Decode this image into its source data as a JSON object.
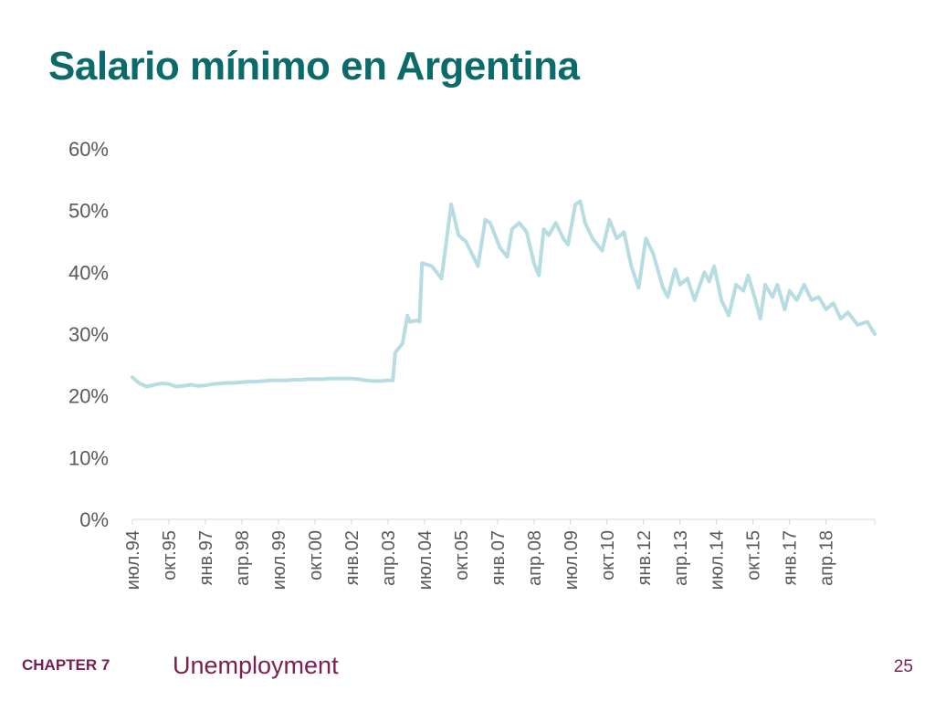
{
  "slide": {
    "title": "Salario mínimo en Argentina",
    "footer_chapter": "CHAPTER 7",
    "footer_subject": "Unemployment",
    "page_number": "25"
  },
  "colors": {
    "title": "#0b6a6a",
    "series_line": "#b7dde3",
    "axis_text": "#595959",
    "axis_line": "#d9d9d9",
    "footer": "#7a1f4f"
  },
  "chart_data": {
    "type": "line",
    "title": "",
    "xlabel": "",
    "ylabel": "",
    "ylim": [
      0,
      0.6
    ],
    "y_ticks": [
      "0%",
      "10%",
      "20%",
      "30%",
      "40%",
      "50%",
      "60%"
    ],
    "y_tick_values": [
      0,
      0.1,
      0.2,
      0.3,
      0.4,
      0.5,
      0.6
    ],
    "grid": false,
    "legend": "none",
    "x_tick_labels": [
      "июл.94",
      "окт.95",
      "янв.97",
      "апр.98",
      "июл.99",
      "окт.00",
      "янв.02",
      "апр.03",
      "июл.04",
      "окт.05",
      "янв.07",
      "апр.08",
      "июл.09",
      "окт.10",
      "янв.12",
      "апр.13",
      "июл.14",
      "окт.15",
      "янв.17",
      "апр.18"
    ],
    "x_range": [
      "июл.94",
      "дек.19"
    ],
    "series": [
      {
        "points": [
          [
            "июл.94",
            0.23
          ],
          [
            "окт.94",
            0.22
          ],
          [
            "янв.95",
            0.215
          ],
          [
            "апр.95",
            0.218
          ],
          [
            "июл.95",
            0.22
          ],
          [
            "окт.95",
            0.219
          ],
          [
            "янв.96",
            0.215
          ],
          [
            "апр.96",
            0.216
          ],
          [
            "июл.96",
            0.218
          ],
          [
            "окт.96",
            0.216
          ],
          [
            "янв.97",
            0.217
          ],
          [
            "апр.97",
            0.219
          ],
          [
            "июл.97",
            0.22
          ],
          [
            "окт.97",
            0.221
          ],
          [
            "янв.98",
            0.221
          ],
          [
            "апр.98",
            0.222
          ],
          [
            "июл.98",
            0.223
          ],
          [
            "окт.98",
            0.223
          ],
          [
            "янв.99",
            0.224
          ],
          [
            "апр.99",
            0.225
          ],
          [
            "июл.99",
            0.225
          ],
          [
            "окт.99",
            0.225
          ],
          [
            "янв.00",
            0.226
          ],
          [
            "апр.00",
            0.226
          ],
          [
            "июл.00",
            0.227
          ],
          [
            "окт.00",
            0.227
          ],
          [
            "янв.01",
            0.227
          ],
          [
            "апр.01",
            0.228
          ],
          [
            "июл.01",
            0.228
          ],
          [
            "окт.01",
            0.228
          ],
          [
            "янв.02",
            0.228
          ],
          [
            "апр.02",
            0.227
          ],
          [
            "июл.02",
            0.225
          ],
          [
            "окт.02",
            0.224
          ],
          [
            "янв.03",
            0.224
          ],
          [
            "апр.03",
            0.225
          ],
          [
            "июн.03",
            0.225
          ],
          [
            "июл.03",
            0.27
          ],
          [
            "окт.03",
            0.285
          ],
          [
            "дек.03",
            0.33
          ],
          [
            "янв.04",
            0.32
          ],
          [
            "апр.04",
            0.322
          ],
          [
            "май.04",
            0.32
          ],
          [
            "июн.04",
            0.415
          ],
          [
            "окт.04",
            0.41
          ],
          [
            "фев.05",
            0.39
          ],
          [
            "июн.05",
            0.51
          ],
          [
            "сен.05",
            0.46
          ],
          [
            "дек.05",
            0.45
          ],
          [
            "май.06",
            0.41
          ],
          [
            "авг.06",
            0.485
          ],
          [
            "окт.06",
            0.48
          ],
          [
            "фев.07",
            0.44
          ],
          [
            "май.07",
            0.425
          ],
          [
            "июл.07",
            0.47
          ],
          [
            "окт.07",
            0.48
          ],
          [
            "янв.08",
            0.465
          ],
          [
            "апр.08",
            0.415
          ],
          [
            "июн.08",
            0.395
          ],
          [
            "авг.08",
            0.47
          ],
          [
            "окт.08",
            0.46
          ],
          [
            "янв.09",
            0.48
          ],
          [
            "апр.09",
            0.455
          ],
          [
            "июн.09",
            0.445
          ],
          [
            "сен.09",
            0.51
          ],
          [
            "ноя.09",
            0.515
          ],
          [
            "янв.10",
            0.48
          ],
          [
            "апр.10",
            0.455
          ],
          [
            "авг.10",
            0.435
          ],
          [
            "ноя.10",
            0.485
          ],
          [
            "фев.11",
            0.455
          ],
          [
            "май.11",
            0.465
          ],
          [
            "авг.11",
            0.41
          ],
          [
            "ноя.11",
            0.375
          ],
          [
            "фев.12",
            0.455
          ],
          [
            "май.12",
            0.43
          ],
          [
            "сен.12",
            0.375
          ],
          [
            "ноя.12",
            0.36
          ],
          [
            "фев.13",
            0.405
          ],
          [
            "апр.13",
            0.38
          ],
          [
            "июл.13",
            0.39
          ],
          [
            "окт.13",
            0.355
          ],
          [
            "фев.14",
            0.4
          ],
          [
            "апр.14",
            0.385
          ],
          [
            "июн.14",
            0.41
          ],
          [
            "сен.14",
            0.355
          ],
          [
            "дек.14",
            0.33
          ],
          [
            "мар.15",
            0.38
          ],
          [
            "июн.15",
            0.37
          ],
          [
            "авг.15",
            0.395
          ],
          [
            "ноя.15",
            0.355
          ],
          [
            "янв.16",
            0.325
          ],
          [
            "мар.16",
            0.38
          ],
          [
            "июн.16",
            0.36
          ],
          [
            "авг.16",
            0.38
          ],
          [
            "ноя.16",
            0.34
          ],
          [
            "янв.17",
            0.37
          ],
          [
            "апр.17",
            0.355
          ],
          [
            "июл.17",
            0.38
          ],
          [
            "окт.17",
            0.355
          ],
          [
            "янв.18",
            0.36
          ],
          [
            "апр.18",
            0.34
          ],
          [
            "июл.18",
            0.35
          ],
          [
            "окт.18",
            0.325
          ],
          [
            "янв.19",
            0.335
          ],
          [
            "май.19",
            0.315
          ],
          [
            "сен.19",
            0.32
          ],
          [
            "дек.19",
            0.3
          ]
        ]
      }
    ]
  }
}
